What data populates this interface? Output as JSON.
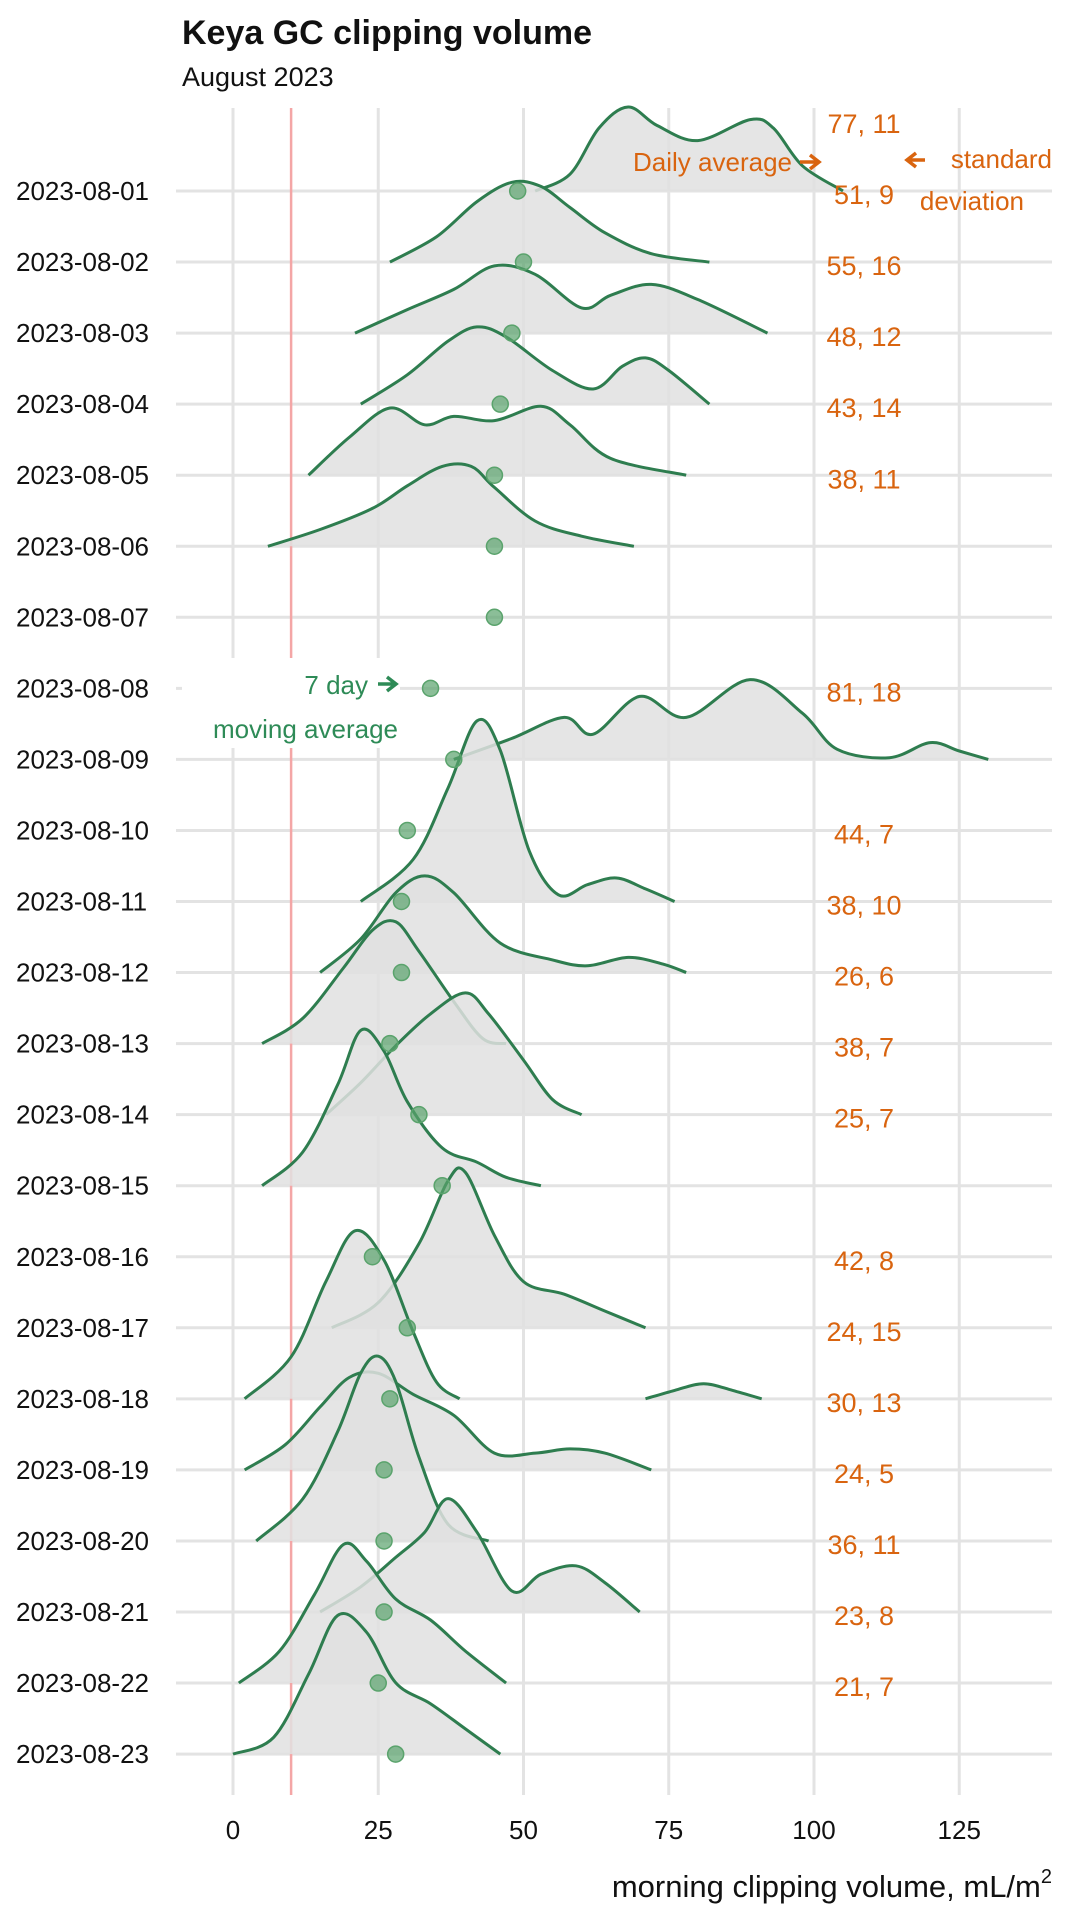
{
  "chart_data": {
    "type": "ridgeline",
    "title": "Keya GC clipping volume",
    "subtitle": "August 2023",
    "xlabel": "morning clipping volume, mL/m",
    "xlabel_superscript": "2",
    "xlim": [
      -6,
      140
    ],
    "xticks": [
      0,
      25,
      50,
      75,
      100,
      125
    ],
    "reference_line_x": 10,
    "grid": true,
    "colors": {
      "density_line": "#2e7d4f",
      "density_fill": "#e0e0e0",
      "moving_avg_point": "#5aa36c",
      "stats_text": "#d9640f",
      "reference_line": "#f4a6a6",
      "grid": "#e3e3e3"
    },
    "annotations": {
      "daily_average": "Daily average",
      "standard": "standard",
      "deviation": "deviation",
      "seven_day": "7 day",
      "moving_average": "moving average"
    },
    "series": [
      {
        "date": "2023-08-01",
        "mean": 77,
        "sd": 11,
        "moving_avg": 49,
        "density": [
          [
            52,
            0
          ],
          [
            58,
            0.2
          ],
          [
            63,
            0.75
          ],
          [
            68,
            1.0
          ],
          [
            73,
            0.78
          ],
          [
            80,
            0.6
          ],
          [
            89,
            0.85
          ],
          [
            93,
            0.75
          ],
          [
            98,
            0.3
          ],
          [
            105,
            0
          ]
        ]
      },
      {
        "date": "2023-08-02",
        "mean": 51,
        "sd": 9,
        "moving_avg": 50,
        "density": [
          [
            27,
            0
          ],
          [
            35,
            0.3
          ],
          [
            42,
            0.72
          ],
          [
            48,
            0.95
          ],
          [
            53,
            0.9
          ],
          [
            58,
            0.65
          ],
          [
            64,
            0.35
          ],
          [
            72,
            0.1
          ],
          [
            82,
            0
          ]
        ]
      },
      {
        "date": "2023-08-03",
        "mean": 55,
        "sd": 16,
        "moving_avg": 48,
        "density": [
          [
            21,
            0
          ],
          [
            30,
            0.28
          ],
          [
            38,
            0.52
          ],
          [
            45,
            0.8
          ],
          [
            52,
            0.7
          ],
          [
            60,
            0.3
          ],
          [
            65,
            0.45
          ],
          [
            72,
            0.58
          ],
          [
            80,
            0.4
          ],
          [
            92,
            0
          ]
        ]
      },
      {
        "date": "2023-08-04",
        "mean": 48,
        "sd": 12,
        "moving_avg": 46,
        "density": [
          [
            22,
            0
          ],
          [
            30,
            0.35
          ],
          [
            37,
            0.75
          ],
          [
            42,
            0.92
          ],
          [
            47,
            0.8
          ],
          [
            55,
            0.4
          ],
          [
            62,
            0.18
          ],
          [
            67,
            0.45
          ],
          [
            71,
            0.55
          ],
          [
            75,
            0.4
          ],
          [
            82,
            0
          ]
        ]
      },
      {
        "date": "2023-08-05",
        "mean": 43,
        "sd": 14,
        "moving_avg": 45,
        "density": [
          [
            13,
            0
          ],
          [
            20,
            0.45
          ],
          [
            27,
            0.8
          ],
          [
            33,
            0.6
          ],
          [
            38,
            0.7
          ],
          [
            45,
            0.65
          ],
          [
            53,
            0.82
          ],
          [
            58,
            0.6
          ],
          [
            65,
            0.2
          ],
          [
            78,
            0
          ]
        ]
      },
      {
        "date": "2023-08-06",
        "mean": 38,
        "sd": 11,
        "moving_avg": 45,
        "density": [
          [
            6,
            0
          ],
          [
            15,
            0.2
          ],
          [
            24,
            0.45
          ],
          [
            30,
            0.72
          ],
          [
            36,
            0.95
          ],
          [
            41,
            0.95
          ],
          [
            45,
            0.7
          ],
          [
            52,
            0.3
          ],
          [
            60,
            0.12
          ],
          [
            69,
            0
          ]
        ]
      },
      {
        "date": "2023-08-07",
        "mean": null,
        "sd": null,
        "moving_avg": 45,
        "density": []
      },
      {
        "date": "2023-08-08",
        "mean": null,
        "sd": null,
        "moving_avg": 34,
        "density": []
      },
      {
        "date": "2023-08-09",
        "mean": 81,
        "sd": 18,
        "moving_avg": 38,
        "density": [
          [
            38,
            0
          ],
          [
            48,
            0.25
          ],
          [
            57,
            0.5
          ],
          [
            62,
            0.3
          ],
          [
            70,
            0.75
          ],
          [
            78,
            0.5
          ],
          [
            89,
            0.95
          ],
          [
            98,
            0.55
          ],
          [
            104,
            0.12
          ],
          [
            113,
            0.02
          ],
          [
            120,
            0.2
          ],
          [
            125,
            0.1
          ],
          [
            130,
            0
          ]
        ]
      },
      {
        "date": "2023-08-10",
        "mean": null,
        "sd": null,
        "moving_avg": 30,
        "density": []
      },
      {
        "date": "2023-08-11",
        "mean": 44,
        "sd": 7,
        "moving_avg": 29,
        "density": [
          [
            22,
            0
          ],
          [
            31,
            0.5
          ],
          [
            37,
            1.35
          ],
          [
            42,
            2.15
          ],
          [
            46,
            1.8
          ],
          [
            51,
            0.6
          ],
          [
            56,
            0.08
          ],
          [
            61,
            0.2
          ],
          [
            66,
            0.28
          ],
          [
            71,
            0.15
          ],
          [
            76,
            0
          ]
        ]
      },
      {
        "date": "2023-08-12",
        "mean": 38,
        "sd": 10,
        "moving_avg": 29,
        "density": [
          [
            15,
            0
          ],
          [
            22,
            0.4
          ],
          [
            28,
            0.95
          ],
          [
            33,
            1.15
          ],
          [
            38,
            0.95
          ],
          [
            46,
            0.35
          ],
          [
            55,
            0.15
          ],
          [
            61,
            0.08
          ],
          [
            68,
            0.18
          ],
          [
            74,
            0.1
          ],
          [
            78,
            0
          ]
        ]
      },
      {
        "date": "2023-08-13",
        "mean": 26,
        "sd": 6,
        "moving_avg": 27,
        "density": [
          [
            5,
            0
          ],
          [
            12,
            0.3
          ],
          [
            19,
            0.9
          ],
          [
            24,
            1.35
          ],
          [
            28,
            1.45
          ],
          [
            32,
            1.1
          ],
          [
            38,
            0.5
          ],
          [
            43,
            0.06
          ],
          [
            47,
            0
          ]
        ]
      },
      {
        "date": "2023-08-14",
        "mean": 38,
        "sd": 7,
        "moving_avg": 32,
        "density": [
          [
            16,
            0
          ],
          [
            22,
            0.38
          ],
          [
            28,
            0.82
          ],
          [
            34,
            1.2
          ],
          [
            40,
            1.45
          ],
          [
            44,
            1.2
          ],
          [
            50,
            0.65
          ],
          [
            55,
            0.18
          ],
          [
            60,
            0
          ]
        ]
      },
      {
        "date": "2023-08-15",
        "mean": 25,
        "sd": 7,
        "moving_avg": 36,
        "density": [
          [
            5,
            0
          ],
          [
            12,
            0.4
          ],
          [
            18,
            1.2
          ],
          [
            22,
            1.85
          ],
          [
            26,
            1.6
          ],
          [
            30,
            1.0
          ],
          [
            36,
            0.45
          ],
          [
            42,
            0.28
          ],
          [
            47,
            0.1
          ],
          [
            53,
            0
          ]
        ]
      },
      {
        "date": "2023-08-16",
        "mean": null,
        "sd": null,
        "moving_avg": 24,
        "density": []
      },
      {
        "date": "2023-08-17",
        "mean": 42,
        "sd": 8,
        "moving_avg": 30,
        "density": [
          [
            17,
            0
          ],
          [
            25,
            0.3
          ],
          [
            32,
            1.0
          ],
          [
            37,
            1.75
          ],
          [
            40,
            1.85
          ],
          [
            45,
            1.1
          ],
          [
            50,
            0.55
          ],
          [
            57,
            0.4
          ],
          [
            64,
            0.2
          ],
          [
            71,
            0
          ]
        ]
      },
      {
        "date": "2023-08-18",
        "mean": 24,
        "sd": 15,
        "moving_avg": 27,
        "density": [
          [
            2,
            0
          ],
          [
            10,
            0.5
          ],
          [
            16,
            1.4
          ],
          [
            21,
            2.0
          ],
          [
            26,
            1.65
          ],
          [
            31,
            0.8
          ],
          [
            35,
            0.2
          ],
          [
            39,
            0
          ],
          [
            71,
            0
          ],
          [
            76,
            0.1
          ],
          [
            81,
            0.18
          ],
          [
            86,
            0.1
          ],
          [
            91,
            0
          ]
        ]
      },
      {
        "date": "2023-08-19",
        "mean": 30,
        "sd": 13,
        "moving_avg": 26,
        "density": [
          [
            2,
            0
          ],
          [
            9,
            0.3
          ],
          [
            15,
            0.75
          ],
          [
            20,
            1.1
          ],
          [
            25,
            1.15
          ],
          [
            31,
            0.9
          ],
          [
            38,
            0.65
          ],
          [
            45,
            0.2
          ],
          [
            52,
            0.2
          ],
          [
            58,
            0.25
          ],
          [
            64,
            0.2
          ],
          [
            72,
            0
          ]
        ]
      },
      {
        "date": "2023-08-20",
        "mean": 24,
        "sd": 5,
        "moving_avg": 26,
        "density": [
          [
            4,
            0
          ],
          [
            12,
            0.5
          ],
          [
            18,
            1.3
          ],
          [
            22,
            2.0
          ],
          [
            25,
            2.2
          ],
          [
            28,
            1.9
          ],
          [
            32,
            1.0
          ],
          [
            37,
            0.2
          ],
          [
            44,
            0
          ]
        ]
      },
      {
        "date": "2023-08-21",
        "mean": 36,
        "sd": 11,
        "moving_avg": 26,
        "density": [
          [
            15,
            0
          ],
          [
            22,
            0.3
          ],
          [
            28,
            0.65
          ],
          [
            33,
            0.95
          ],
          [
            37,
            1.35
          ],
          [
            42,
            0.95
          ],
          [
            48,
            0.25
          ],
          [
            53,
            0.45
          ],
          [
            59,
            0.55
          ],
          [
            64,
            0.35
          ],
          [
            70,
            0
          ]
        ]
      },
      {
        "date": "2023-08-22",
        "mean": 23,
        "sd": 8,
        "moving_avg": 25,
        "density": [
          [
            1,
            0
          ],
          [
            8,
            0.38
          ],
          [
            14,
            1.05
          ],
          [
            19,
            1.65
          ],
          [
            23,
            1.45
          ],
          [
            28,
            1.0
          ],
          [
            34,
            0.75
          ],
          [
            40,
            0.38
          ],
          [
            47,
            0
          ]
        ]
      },
      {
        "date": "2023-08-23",
        "mean": 21,
        "sd": 7,
        "moving_avg": 28,
        "density": [
          [
            0,
            0
          ],
          [
            7,
            0.2
          ],
          [
            13,
            0.95
          ],
          [
            18,
            1.65
          ],
          [
            23,
            1.45
          ],
          [
            28,
            0.85
          ],
          [
            34,
            0.6
          ],
          [
            40,
            0.3
          ],
          [
            46,
            0
          ]
        ]
      }
    ]
  }
}
